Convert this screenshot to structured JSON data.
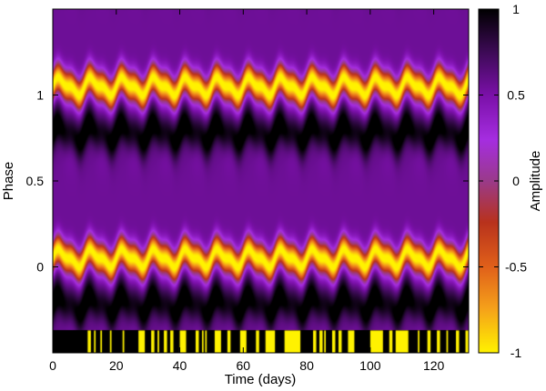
{
  "chart_data": {
    "type": "heatmap",
    "xlabel": "Time (days)",
    "ylabel": "Phase",
    "colorbar_label": "Amplitude",
    "xlim": [
      0,
      131
    ],
    "ylim": [
      -0.5,
      1.5
    ],
    "xticks": [
      "0",
      "20",
      "40",
      "60",
      "80",
      "100",
      "120"
    ],
    "xtick_values": [
      0,
      20,
      40,
      60,
      80,
      100,
      120
    ],
    "yticks": [
      "0",
      "0.5",
      "1"
    ],
    "ytick_values": [
      0,
      0.5,
      1
    ],
    "colorbar_range": [
      -1,
      1
    ],
    "colorbar_ticks": [
      "1",
      "0.5",
      "0",
      "-0.5",
      "-1"
    ],
    "colorbar_tick_values": [
      1,
      0.5,
      0,
      -0.5,
      -1
    ],
    "colormap": [
      "#000000",
      "#3a0a52",
      "#7a10a8",
      "#a52de0",
      "#9a3a8a",
      "#b8321c",
      "#e0601a",
      "#f5a01a",
      "#fff200"
    ],
    "signal": {
      "shape": "periodic in phase with period 1; bright (amplitude -1) bands near phase 1.05 and 0.05, dark (amplitude 1) bands near phase 0.75 and -0.25",
      "modulation_period_days": 10,
      "modulation_amplitude_phase": 0.04
    },
    "observation_flags": {
      "color": "#fff200",
      "intervals": [
        [
          11,
          12
        ],
        [
          13,
          13.5
        ],
        [
          15,
          15.5
        ],
        [
          18,
          18.5
        ],
        [
          22,
          22.5
        ],
        [
          27,
          29
        ],
        [
          31,
          32
        ],
        [
          33,
          33.5
        ],
        [
          35,
          36
        ],
        [
          37,
          38
        ],
        [
          40,
          42
        ],
        [
          45,
          46
        ],
        [
          47,
          47.5
        ],
        [
          48,
          48.5
        ],
        [
          51,
          53
        ],
        [
          55,
          56
        ],
        [
          59,
          61
        ],
        [
          64,
          65
        ],
        [
          67,
          70
        ],
        [
          73,
          78
        ],
        [
          82,
          83
        ],
        [
          84,
          85
        ],
        [
          85.5,
          86
        ],
        [
          88,
          89
        ],
        [
          90,
          91
        ],
        [
          93,
          95
        ],
        [
          100,
          104
        ],
        [
          106,
          107
        ],
        [
          108,
          112
        ],
        [
          115,
          115.5
        ],
        [
          118,
          119
        ],
        [
          121,
          122
        ],
        [
          124,
          124.5
        ],
        [
          127,
          128
        ],
        [
          130,
          131
        ]
      ]
    }
  }
}
